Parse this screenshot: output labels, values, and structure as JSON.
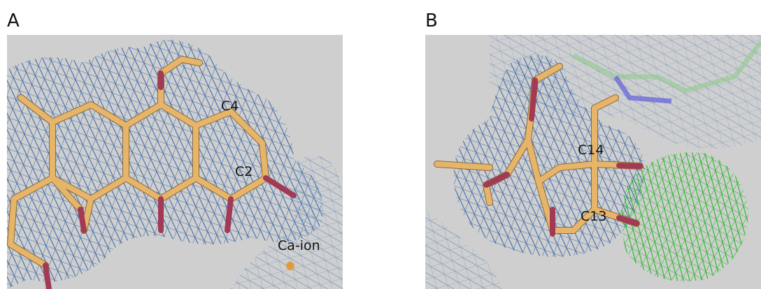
{
  "panels": [
    {
      "label": "A",
      "annotations": [
        "C4",
        "C2",
        "Ca-ion"
      ]
    },
    {
      "label": "B",
      "annotations": [
        "C14",
        "C13"
      ]
    }
  ]
}
